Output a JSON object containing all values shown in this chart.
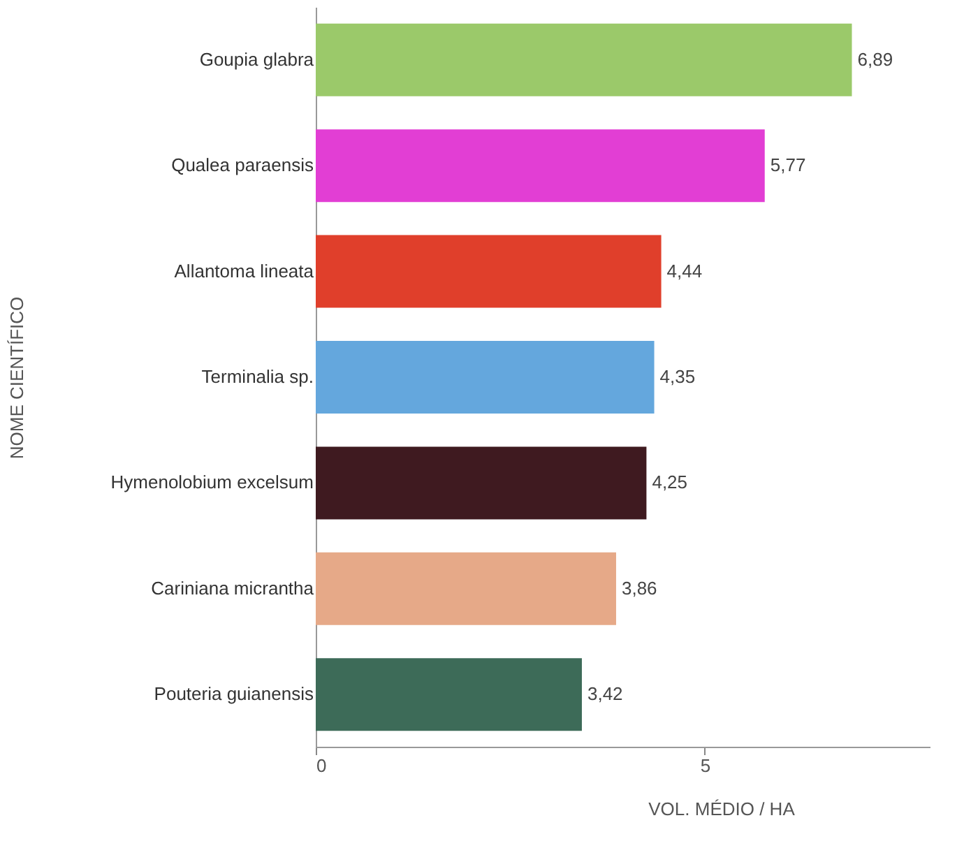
{
  "chart_data": {
    "type": "bar",
    "orientation": "horizontal",
    "xlabel": "VOL. MÉDIO / HA",
    "ylabel": "NOME CIENTÍFICO",
    "categories": [
      "Goupia glabra",
      "Qualea paraensis",
      "Allantoma lineata",
      "Terminalia sp.",
      "Hymenolobium excelsum",
      "Cariniana micrantha",
      "Pouteria guianensis"
    ],
    "values": [
      6.89,
      5.77,
      4.44,
      4.35,
      4.25,
      3.86,
      3.42
    ],
    "value_labels": [
      "6,89",
      "5,77",
      "4,44",
      "4,35",
      "4,25",
      "3,86",
      "3,42"
    ],
    "colors": [
      "#9bc96a",
      "#e23ed4",
      "#e03f2b",
      "#64a7dd",
      "#3f1a20",
      "#e6a988",
      "#3d6b58"
    ],
    "xlim": [
      0,
      7.9
    ],
    "xticks": [
      0,
      5
    ],
    "grid": false,
    "legend": false
  }
}
